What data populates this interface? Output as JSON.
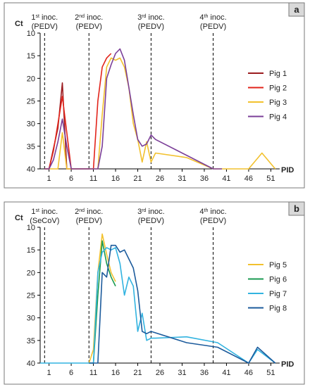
{
  "chart_data": [
    {
      "type": "line",
      "panel_label": "a",
      "xlabel": "PID",
      "ylabel": "Ct",
      "xlim": [
        -1,
        53
      ],
      "ylim": [
        40,
        10
      ],
      "y_inverted": true,
      "x_ticks": [
        1,
        6,
        11,
        16,
        21,
        26,
        31,
        36,
        41,
        46,
        51
      ],
      "y_ticks": [
        10,
        15,
        20,
        25,
        30,
        35,
        40
      ],
      "grid": false,
      "legend_position": "right",
      "inoculations": [
        {
          "x": 0,
          "ordinal": "1",
          "suffix": "st",
          "label": "inoc.",
          "agent": "(PEDV)"
        },
        {
          "x": 10,
          "ordinal": "2",
          "suffix": "nd",
          "label": "inoc.",
          "agent": "(PEDV)"
        },
        {
          "x": 24,
          "ordinal": "3",
          "suffix": "rd",
          "label": "inoc.",
          "agent": "(PEDV)"
        },
        {
          "x": 38,
          "ordinal": "4",
          "suffix": "th",
          "label": "inoc.",
          "agent": "(PEDV)"
        }
      ],
      "series": [
        {
          "name": "Pig 1",
          "color": "#9b1b1f",
          "x": [
            0,
            1,
            3,
            4,
            5,
            6,
            7,
            10
          ],
          "y": [
            40,
            40,
            31,
            21,
            40,
            40,
            40,
            40
          ]
        },
        {
          "name": "Pig 2",
          "color": "#e2231a",
          "x": [
            0,
            1,
            2,
            3,
            4,
            5,
            6,
            10,
            11,
            12,
            13,
            14,
            15
          ],
          "y": [
            40,
            40,
            36,
            30,
            24,
            32,
            40,
            40,
            40,
            25,
            17.5,
            15.5,
            14.5
          ]
        },
        {
          "name": "Pig 3",
          "color": "#f2c12e",
          "x": [
            0,
            3,
            4,
            5,
            10,
            11,
            12,
            13,
            14,
            15,
            16,
            17,
            18,
            19,
            20,
            21,
            22,
            23,
            24,
            25,
            32,
            38,
            40,
            46,
            49,
            52
          ],
          "y": [
            40,
            40,
            32,
            40,
            40,
            40,
            40,
            28,
            17.5,
            15.5,
            16,
            15.5,
            17.5,
            22,
            30,
            33.5,
            38.5,
            34,
            38.5,
            36.5,
            37.5,
            40,
            40,
            40,
            36.5,
            40
          ]
        },
        {
          "name": "Pig 4",
          "color": "#7b3f98",
          "x": [
            0,
            1,
            2,
            3,
            4,
            5,
            6,
            10,
            11,
            12,
            13,
            14,
            15,
            16,
            17,
            18,
            19,
            20,
            21,
            22,
            23,
            24,
            25,
            38,
            40
          ],
          "y": [
            40,
            40,
            38,
            34,
            29,
            35,
            40,
            40,
            40,
            40,
            35,
            20,
            17,
            14.5,
            13.5,
            16,
            22,
            28,
            33.5,
            35,
            34.5,
            32.5,
            33.5,
            40,
            40
          ]
        }
      ]
    },
    {
      "type": "line",
      "panel_label": "b",
      "xlabel": "PID",
      "ylabel": "Ct",
      "xlim": [
        -1,
        53
      ],
      "ylim": [
        40,
        10
      ],
      "y_inverted": true,
      "x_ticks": [
        1,
        6,
        11,
        16,
        21,
        26,
        31,
        36,
        41,
        46,
        51
      ],
      "y_ticks": [
        10,
        15,
        20,
        25,
        30,
        35,
        40
      ],
      "grid": false,
      "legend_position": "right",
      "inoculations": [
        {
          "x": 0,
          "ordinal": "1",
          "suffix": "st",
          "label": "inoc.",
          "agent": "(SeCoV)"
        },
        {
          "x": 10,
          "ordinal": "2",
          "suffix": "nd",
          "label": "inoc.",
          "agent": "(PEDV)"
        },
        {
          "x": 24,
          "ordinal": "3",
          "suffix": "rd",
          "label": "inoc.",
          "agent": "(PEDV)"
        },
        {
          "x": 38,
          "ordinal": "4",
          "suffix": "th",
          "label": "inoc.",
          "agent": "(PEDV)"
        }
      ],
      "series": [
        {
          "name": "Pig 5",
          "color": "#f2c12e",
          "x": [
            10,
            11,
            12,
            13,
            14,
            15,
            16
          ],
          "y": [
            40,
            37,
            20,
            11.5,
            16,
            20,
            22
          ]
        },
        {
          "name": "Pig 6",
          "color": "#1a9a50",
          "x": [
            10,
            11,
            12,
            13,
            14,
            15,
            16
          ],
          "y": [
            40,
            40,
            25,
            13,
            18,
            21,
            23
          ]
        },
        {
          "name": "Pig 7",
          "color": "#32b3e0",
          "x": [
            -1,
            10,
            11,
            12,
            13,
            14,
            15,
            16,
            17,
            18,
            19,
            20,
            21,
            22,
            23,
            24,
            25,
            32,
            39,
            46,
            48,
            52
          ],
          "y": [
            40,
            40,
            40,
            20,
            15.5,
            14.5,
            15,
            14.5,
            18,
            25,
            21,
            23,
            33,
            29,
            35,
            34.5,
            34.5,
            34.2,
            35.5,
            40,
            37,
            40
          ]
        },
        {
          "name": "Pig 8",
          "color": "#1c5b9c",
          "x": [
            10,
            11,
            12,
            13,
            14,
            15,
            16,
            17,
            18,
            19,
            20,
            21,
            22,
            23,
            24,
            32,
            39,
            46,
            48,
            52
          ],
          "y": [
            40,
            40,
            40,
            20,
            21,
            14,
            14,
            15.5,
            15,
            17,
            19,
            24,
            33,
            33.5,
            33,
            35.5,
            36.5,
            40,
            36.5,
            40
          ]
        }
      ]
    }
  ]
}
